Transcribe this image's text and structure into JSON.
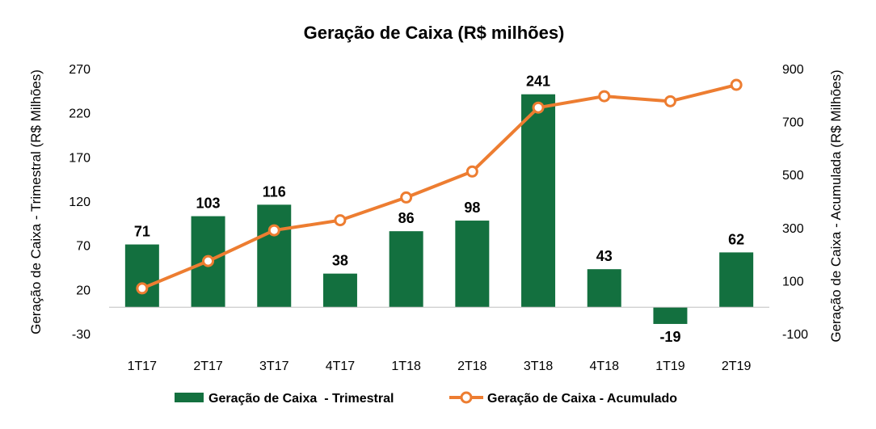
{
  "chart_data": {
    "type": "bar",
    "title": "Geração de Caixa (R$ milhões)",
    "categories": [
      "1T17",
      "2T17",
      "3T17",
      "4T17",
      "1T18",
      "2T18",
      "3T18",
      "4T18",
      "1T19",
      "2T19"
    ],
    "y_left": {
      "label": "Geração de Caixa - Trimestral (R$ Milhões)",
      "range": [
        -30,
        270
      ],
      "ticks": [
        -30,
        20,
        70,
        120,
        170,
        220,
        270
      ]
    },
    "y_right": {
      "label": "Geração de Caixa - Acumulada (R$ Milhões)",
      "range": [
        -100,
        900
      ],
      "ticks": [
        -100,
        100,
        300,
        500,
        700,
        900
      ]
    },
    "series": [
      {
        "name": "Geração de Caixa  - Trimestral",
        "type": "bar",
        "axis": "left",
        "color": "#13703f",
        "values": [
          71,
          103,
          116,
          38,
          86,
          98,
          241,
          43,
          -19,
          62
        ],
        "labels": [
          "71",
          "103",
          "116",
          "38",
          "86",
          "98",
          "241",
          "43",
          "-19",
          "62"
        ]
      },
      {
        "name": "Geração de Caixa - Acumulado",
        "type": "line",
        "axis": "right",
        "color": "#ed7d31",
        "values": [
          71,
          174,
          290,
          328,
          414,
          512,
          753,
          796,
          777,
          839
        ]
      }
    ],
    "grid": false,
    "legend": "bottom"
  }
}
